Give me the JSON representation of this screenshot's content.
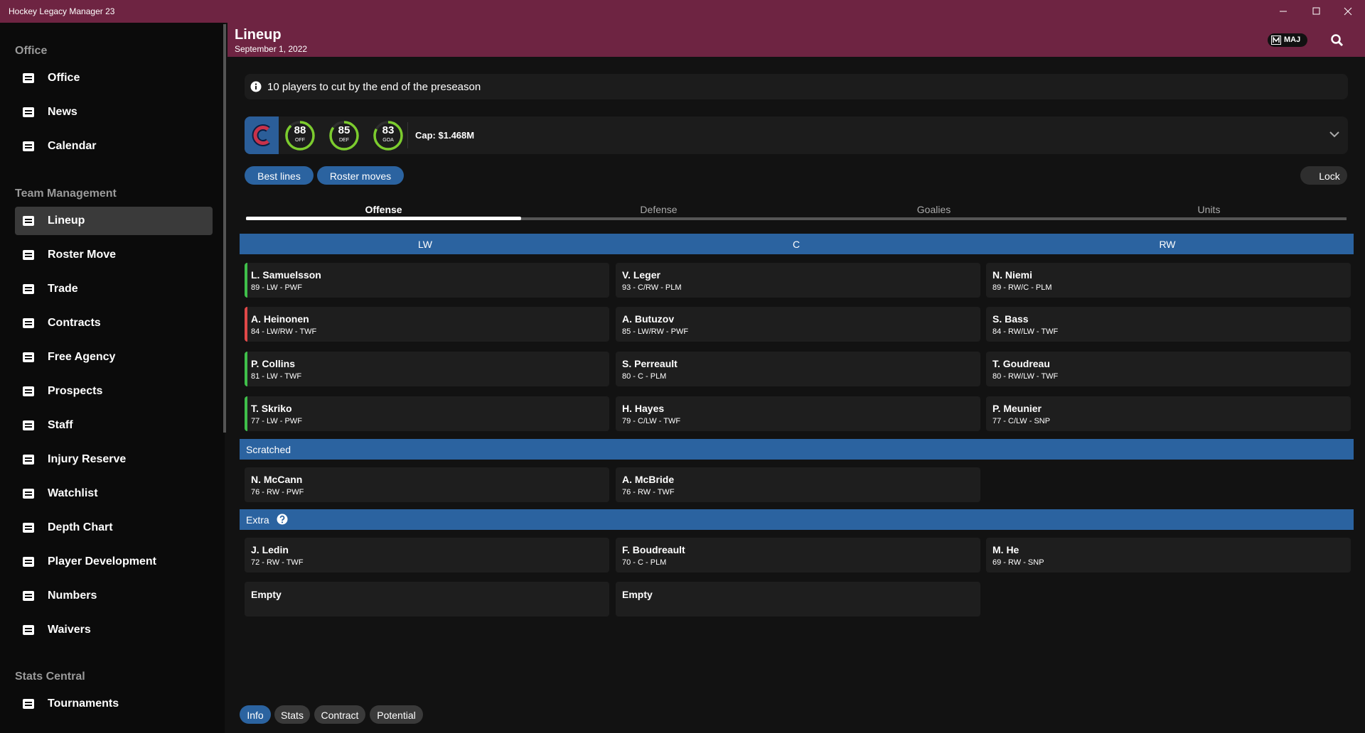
{
  "window": {
    "title": "Hockey Legacy Manager 23"
  },
  "sidebar": {
    "sections": [
      {
        "title": "Office",
        "items": [
          "Office",
          "News",
          "Calendar"
        ]
      },
      {
        "title": "Team Management",
        "items": [
          "Lineup",
          "Roster Move",
          "Trade",
          "Contracts",
          "Free Agency",
          "Prospects",
          "Staff",
          "Injury Reserve",
          "Watchlist",
          "Depth Chart",
          "Player Development",
          "Numbers",
          "Waivers"
        ]
      },
      {
        "title": "Stats Central",
        "items": [
          "Tournaments"
        ]
      }
    ]
  },
  "header": {
    "title": "Lineup",
    "date": "September 1, 2022",
    "badge": "MAJ"
  },
  "notice": "10 players to cut by the end of the preseason",
  "team": {
    "ratings": [
      {
        "value": 88,
        "label": "OFF"
      },
      {
        "value": 85,
        "label": "DEF"
      },
      {
        "value": 83,
        "label": "GOA"
      }
    ],
    "cap": "Cap: $1.468M"
  },
  "buttons": {
    "left": [
      "Best lines",
      "Roster moves"
    ],
    "right": "Lock"
  },
  "tabs": [
    "Offense",
    "Defense",
    "Goalies",
    "Units"
  ],
  "positions": [
    "LW",
    "C",
    "RW"
  ],
  "lines": [
    [
      {
        "name": "L. Samuelsson",
        "info": "89 - LW - PWF",
        "color": "#3fbf4a"
      },
      {
        "name": "V. Leger",
        "info": "93 - C/RW - PLM"
      },
      {
        "name": "N. Niemi",
        "info": "89 - RW/C - PLM"
      }
    ],
    [
      {
        "name": "A. Heinonen",
        "info": "84 - LW/RW - TWF",
        "color": "#e04848"
      },
      {
        "name": "A. Butuzov",
        "info": "85 - LW/RW - PWF"
      },
      {
        "name": "S. Bass",
        "info": "84 - RW/LW - TWF"
      }
    ],
    [
      {
        "name": "P. Collins",
        "info": "81 - LW - TWF",
        "color": "#3fbf4a"
      },
      {
        "name": "S. Perreault",
        "info": "80 - C - PLM"
      },
      {
        "name": "T. Goudreau",
        "info": "80 - RW/LW - TWF"
      }
    ],
    [
      {
        "name": "T. Skriko",
        "info": "77 - LW - PWF",
        "color": "#3fbf4a"
      },
      {
        "name": "H. Hayes",
        "info": "79 - C/LW - TWF"
      },
      {
        "name": "P. Meunier",
        "info": "77 - C/LW - SNP"
      }
    ]
  ],
  "scratched": {
    "title": "Scratched",
    "rows": [
      [
        {
          "name": "N. McCann",
          "info": "76 - RW - PWF"
        },
        {
          "name": "A. McBride",
          "info": "76 - RW - TWF"
        }
      ]
    ]
  },
  "extra": {
    "title": "Extra",
    "rows": [
      [
        {
          "name": "J. Ledin",
          "info": "72 - RW - TWF"
        },
        {
          "name": "F. Boudreault",
          "info": "70 - C - PLM"
        },
        {
          "name": "M. He",
          "info": "69 - RW - SNP"
        }
      ],
      [
        {
          "name": "Empty"
        },
        {
          "name": "Empty"
        }
      ]
    ]
  },
  "bottom_tabs": [
    "Info",
    "Stats",
    "Contract",
    "Potential"
  ]
}
